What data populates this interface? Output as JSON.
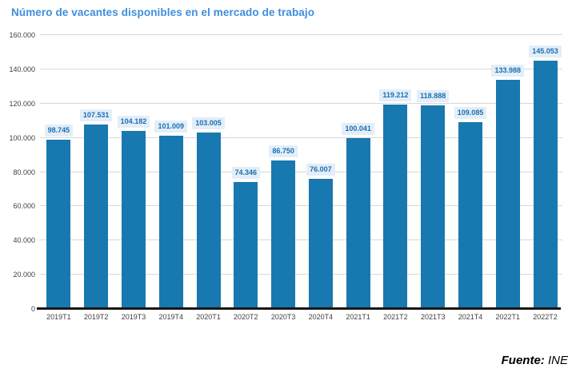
{
  "chart_data": {
    "type": "bar",
    "title": "Número de vacantes disponibles en el mercado de trabajo",
    "categories": [
      "2019T1",
      "2019T2",
      "2019T3",
      "2019T4",
      "2020T1",
      "2020T2",
      "2020T3",
      "2020T4",
      "2021T1",
      "2021T2",
      "2021T3",
      "2021T4",
      "2022T1",
      "2022T2"
    ],
    "values": [
      98745,
      107531,
      104182,
      101009,
      103005,
      74346,
      86750,
      76007,
      100041,
      119212,
      118888,
      109085,
      133988,
      145053
    ],
    "value_labels": [
      "98.745",
      "107.531",
      "104.182",
      "101.009",
      "103.005",
      "74.346",
      "86.750",
      "76.007",
      "100.041",
      "119.212",
      "118.888",
      "109.085",
      "133.988",
      "145.053"
    ],
    "xlabel": "",
    "ylabel": "",
    "ylim": [
      0,
      160000
    ],
    "yticks": [
      0,
      20000,
      40000,
      60000,
      80000,
      100000,
      120000,
      140000,
      160000
    ],
    "ytick_labels": [
      "0",
      "20.000",
      "40.000",
      "60.000",
      "80.000",
      "100.000",
      "120.000",
      "140.000",
      "160.000"
    ],
    "grid": "horizontal",
    "legend": false,
    "colors": {
      "bar": "#1878B0",
      "title": "#3E8EDD",
      "value_label_text": "#1B6FB2",
      "value_label_bg": "#E3EEF8",
      "gridline": "#D8D8D8",
      "axis_text": "#404040",
      "baseline": "#161616"
    }
  },
  "footer": {
    "prefix": "Fuente:",
    "source": "INE"
  }
}
